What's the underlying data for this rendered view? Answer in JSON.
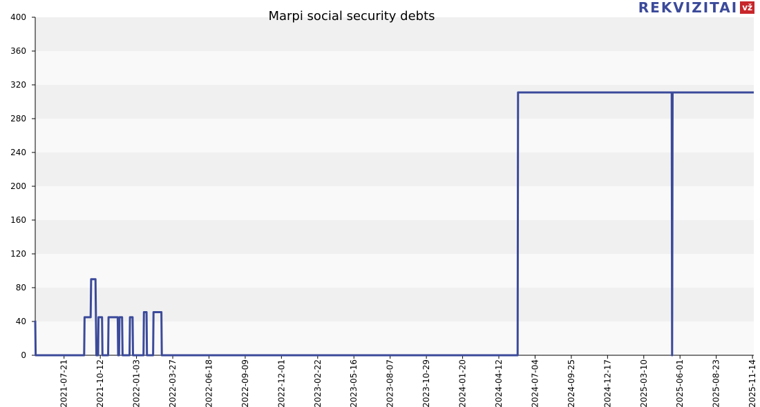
{
  "chart_data": {
    "type": "line",
    "title": "Marpi social security debts",
    "xlabel": "",
    "ylabel": "",
    "ylim": [
      0,
      400
    ],
    "yticks": [
      "0",
      "40",
      "80",
      "120",
      "160",
      "200",
      "240",
      "280",
      "320",
      "360",
      "400"
    ],
    "xlim": [
      "2021-05-16",
      "2025-11-17"
    ],
    "xticks": [
      "2021-07-21",
      "2021-10-12",
      "2022-01-03",
      "2022-03-27",
      "2022-06-18",
      "2022-09-09",
      "2022-12-01",
      "2023-02-22",
      "2023-05-16",
      "2023-08-07",
      "2023-10-29",
      "2024-01-20",
      "2024-04-12",
      "2024-07-04",
      "2024-09-25",
      "2024-12-17",
      "2025-03-10",
      "2025-06-01",
      "2025-08-23",
      "2025-11-14"
    ],
    "grid": true,
    "line_color": "#3b4a9a",
    "series": [
      {
        "points": [
          [
            "2021-05-16",
            41
          ],
          [
            "2021-05-17",
            0
          ],
          [
            "2021-09-05",
            0
          ],
          [
            "2021-09-06",
            45
          ],
          [
            "2021-09-20",
            45
          ],
          [
            "2021-09-21",
            90
          ],
          [
            "2021-10-01",
            90
          ],
          [
            "2021-10-03",
            0
          ],
          [
            "2021-10-07",
            0
          ],
          [
            "2021-10-08",
            45
          ],
          [
            "2021-10-16",
            45
          ],
          [
            "2021-10-17",
            0
          ],
          [
            "2021-10-30",
            0
          ],
          [
            "2021-10-31",
            45
          ],
          [
            "2021-11-21",
            45
          ],
          [
            "2021-11-22",
            0
          ],
          [
            "2021-11-24",
            0
          ],
          [
            "2021-11-25",
            45
          ],
          [
            "2021-12-01",
            45
          ],
          [
            "2021-12-02",
            0
          ],
          [
            "2021-12-18",
            0
          ],
          [
            "2021-12-19",
            45
          ],
          [
            "2021-12-25",
            45
          ],
          [
            "2021-12-26",
            0
          ],
          [
            "2022-01-19",
            0
          ],
          [
            "2022-01-20",
            51
          ],
          [
            "2022-01-26",
            51
          ],
          [
            "2022-01-27",
            0
          ],
          [
            "2022-02-10",
            0
          ],
          [
            "2022-02-11",
            51
          ],
          [
            "2022-03-01",
            51
          ],
          [
            "2022-03-02",
            0
          ],
          [
            "2024-05-25",
            0
          ],
          [
            "2024-05-26",
            311
          ],
          [
            "2025-05-13",
            311
          ],
          [
            "2025-05-14",
            0
          ],
          [
            "2025-05-15",
            311
          ],
          [
            "2025-11-17",
            311
          ]
        ]
      }
    ]
  },
  "brand": {
    "name": "REKVIZITAI",
    "badge": "vž"
  }
}
